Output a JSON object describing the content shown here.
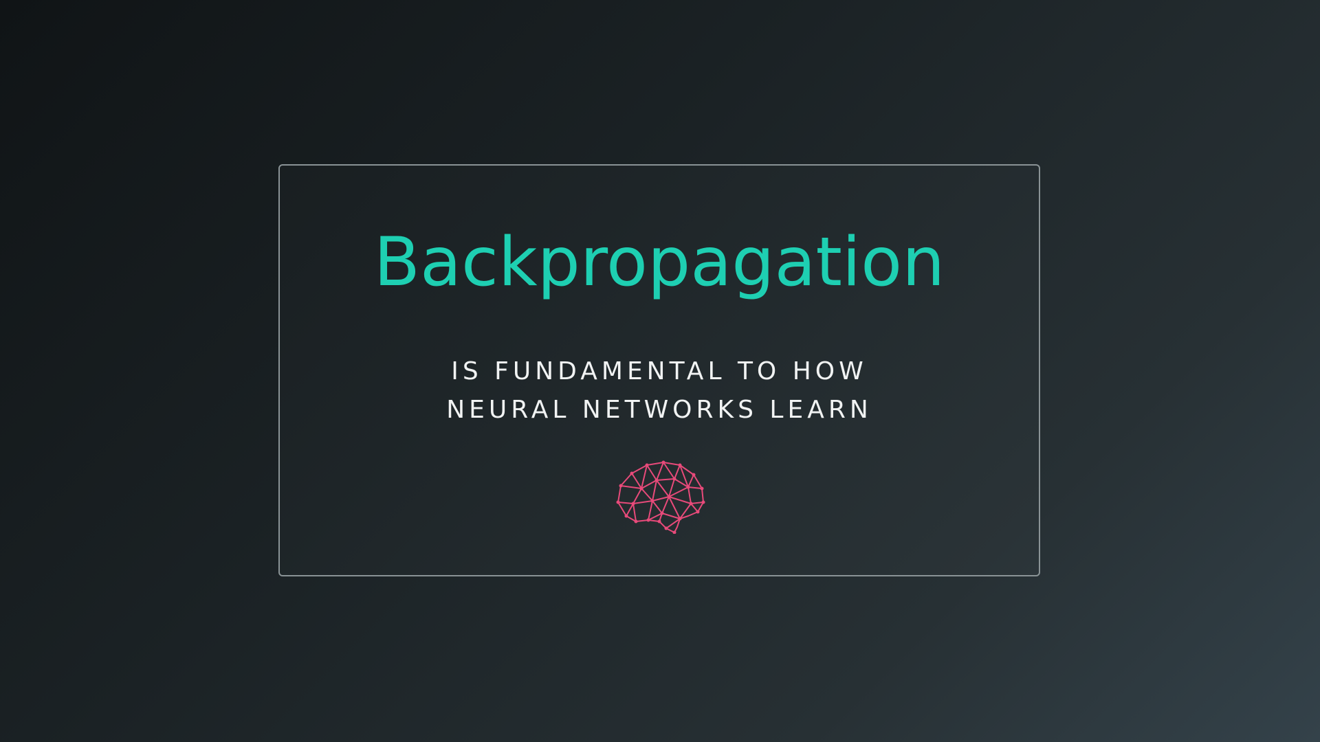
{
  "slide": {
    "title": "Backpropagation",
    "subtitle_lines": [
      "IS FUNDAMENTAL TO HOW",
      "NEURAL NETWORKS LEARN"
    ],
    "icon": "brain-network-icon"
  },
  "colors": {
    "title": "#1ecfb2",
    "subtitle": "#f1f3f3",
    "icon": "#e84a7a",
    "card_border": "#8a9396"
  }
}
